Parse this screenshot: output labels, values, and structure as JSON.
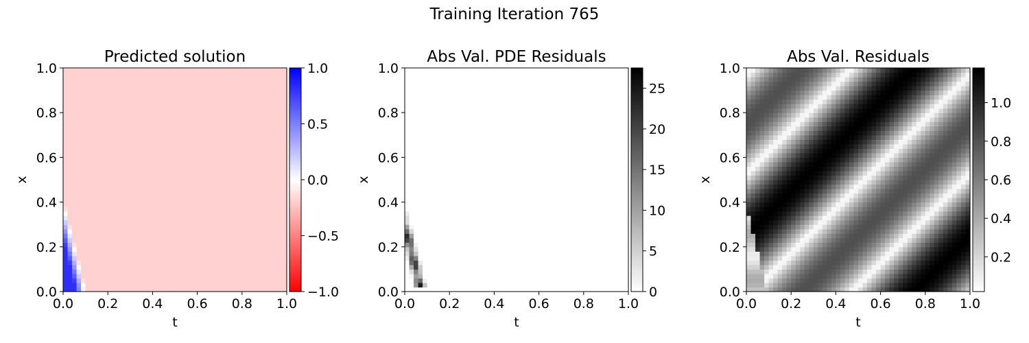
{
  "suptitle": "Training Iteration 765",
  "chart_data": [
    {
      "type": "heatmap",
      "title": "Predicted solution",
      "xlabel": "t",
      "ylabel": "x",
      "xlim": [
        0,
        1
      ],
      "ylim": [
        0,
        1
      ],
      "xticks": [
        "0.0",
        "0.2",
        "0.4",
        "0.6",
        "0.8",
        "1.0"
      ],
      "yticks": [
        "0.0",
        "0.2",
        "0.4",
        "0.6",
        "0.8",
        "1.0"
      ],
      "colormap": "bwr",
      "cmap_colors": [
        "#ff0000",
        "#ffffff",
        "#0000ff"
      ],
      "colorbar_range": [
        -1,
        1
      ],
      "colorbar_ticks": [
        "−1.0",
        "−0.5",
        "0.0",
        "0.5",
        "1.0"
      ],
      "colorbar_tick_values": [
        -1,
        -0.5,
        0,
        0.5,
        1
      ],
      "field": "Nearly uniform value about -0.18 everywhere except a blue wedge (values up to about 0.75) near t=0 for x below ~0.35"
    },
    {
      "type": "heatmap",
      "title": "Abs Val. PDE Residuals",
      "xlabel": "t",
      "ylabel": "x",
      "xlim": [
        0,
        1
      ],
      "ylim": [
        0,
        1
      ],
      "xticks": [
        "0.0",
        "0.2",
        "0.4",
        "0.6",
        "0.8",
        "1.0"
      ],
      "yticks": [
        "0.0",
        "0.2",
        "0.4",
        "0.6",
        "0.8",
        "1.0"
      ],
      "colormap": "Greys",
      "cmap_colors": [
        "#ffffff",
        "#000000"
      ],
      "colorbar_range": [
        0,
        27.5
      ],
      "colorbar_ticks": [
        "0",
        "5",
        "10",
        "15",
        "20",
        "25"
      ],
      "colorbar_tick_values": [
        0,
        5,
        10,
        15,
        20,
        25
      ],
      "field": "Near zero everywhere except a narrow dark streak along the wedge edge near t 0.02-0.09, x 0.03-0.3 (peak about 27)"
    },
    {
      "type": "heatmap",
      "title": "Abs Val. Residuals",
      "xlabel": "t",
      "ylabel": "x",
      "xlim": [
        0,
        1
      ],
      "ylim": [
        0,
        1
      ],
      "xticks": [
        "0.0",
        "0.2",
        "0.4",
        "0.6",
        "0.8",
        "1.0"
      ],
      "yticks": [
        "0.0",
        "0.2",
        "0.4",
        "0.6",
        "0.8",
        "1.0"
      ],
      "colormap": "Greys",
      "cmap_colors": [
        "#ffffff",
        "#000000"
      ],
      "colorbar_range": [
        0.02,
        1.18
      ],
      "colorbar_ticks": [
        "0.2",
        "0.4",
        "0.6",
        "0.8",
        "1.0"
      ],
      "colorbar_tick_values": [
        0.2,
        0.4,
        0.6,
        0.8,
        1.0
      ],
      "field": "Diagonal stripes: |sin(2π(x - t)) + 0.18| over most of the domain, lighter region near t=0, x<0.35"
    }
  ]
}
